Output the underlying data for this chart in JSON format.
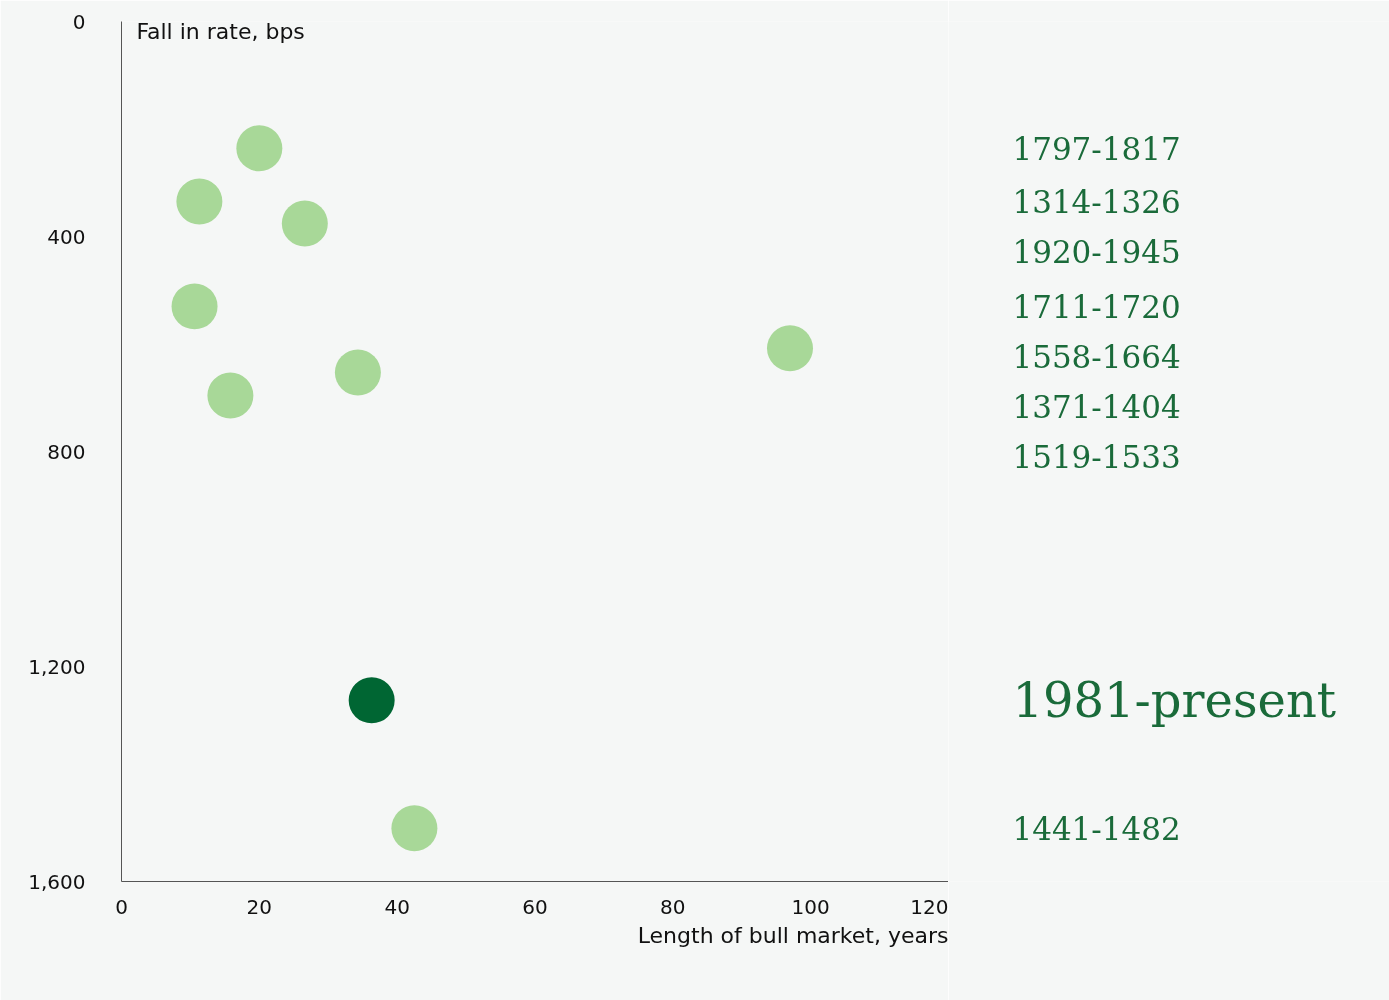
{
  "chart_data": {
    "type": "scatter",
    "xlabel": "Length of bull market, years",
    "ylabel": "Fall in rate, bps",
    "xlim": [
      0,
      120
    ],
    "xticks": [
      0,
      20,
      40,
      60,
      80,
      100,
      120
    ],
    "ylim": [
      1600,
      0
    ],
    "yticks": [
      0,
      400,
      800,
      {
        "value": 1200,
        "label": "1,200"
      },
      {
        "value": 1600,
        "label": "1,600"
      }
    ],
    "grid": false,
    "marker": "circle",
    "series": [
      {
        "color": "#a8d898",
        "x": [
          20,
          11.3,
          26.6,
          10.6,
          97,
          34.3,
          15.8,
          42.5
        ],
        "values": [
          236,
          335,
          376,
          530,
          608,
          653,
          696,
          1501
        ]
      },
      {
        "color": "#006633",
        "x": [
          36.3
        ],
        "values": [
          1263
        ]
      }
    ],
    "annotations": [
      "1797-1817",
      "1314-1326",
      "1920-1945",
      "1711-1720",
      "1558-1664",
      "1371-1404",
      "1519-1533",
      "1981-present",
      "1441-1482"
    ]
  }
}
